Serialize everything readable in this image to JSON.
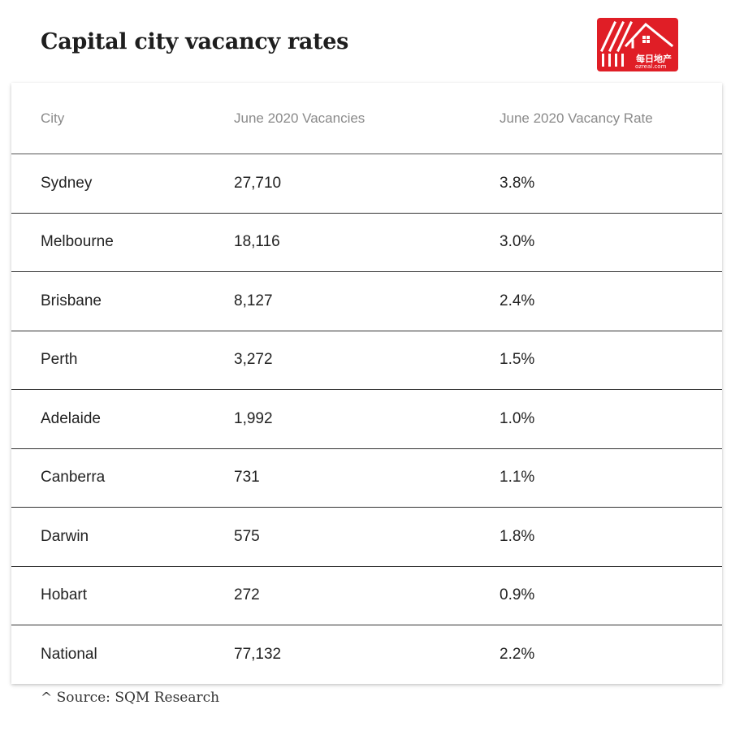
{
  "title": "Capital city vacancy rates",
  "logo": {
    "text_cn": "每日地产",
    "text_url": "ozreal.com",
    "color": "#e01e26"
  },
  "table": {
    "headers": [
      "City",
      "June 2020 Vacancies",
      "June 2020 Vacancy Rate"
    ],
    "rows": [
      [
        "Sydney",
        "27,710",
        "3.8%"
      ],
      [
        "Melbourne",
        "18,116",
        "3.0%"
      ],
      [
        "Brisbane",
        "8,127",
        "2.4%"
      ],
      [
        "Perth",
        "3,272",
        "1.5%"
      ],
      [
        "Adelaide",
        "1,992",
        "1.0%"
      ],
      [
        "Canberra",
        "731",
        "1.1%"
      ],
      [
        "Darwin",
        "575",
        "1.8%"
      ],
      [
        "Hobart",
        "272",
        "0.9%"
      ],
      [
        "National",
        "77,132",
        "2.2%"
      ]
    ]
  },
  "source": "^ Source: SQM Research"
}
